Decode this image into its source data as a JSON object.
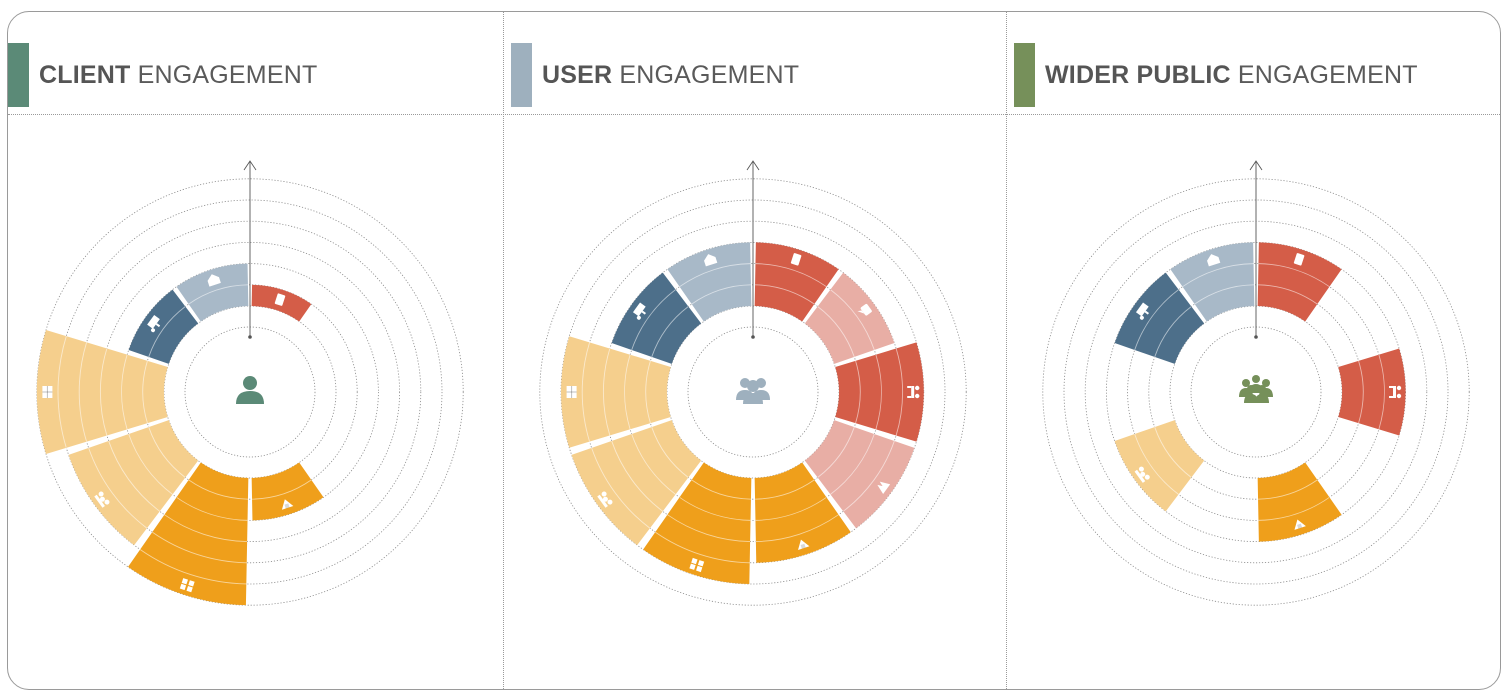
{
  "colors": {
    "client": "#5b8a77",
    "user": "#9eb0be",
    "public": "#76905a",
    "orange": "#ef9f1b",
    "light_orange": "#f5cf8d",
    "red": "#d45d48",
    "pink": "#e8aea5",
    "dark_blue": "#4d6f8a",
    "grey_blue": "#a8b9c8"
  },
  "panels": [
    {
      "title_bold": "CLIENT",
      "title_rest": " ENGAGEMENT",
      "accent_color": "#5b8a77",
      "center_icon": "person-icon"
    },
    {
      "title_bold": "USER",
      "title_rest": " ENGAGEMENT",
      "accent_color": "#9eb0be",
      "center_icon": "group-icon"
    },
    {
      "title_bold": "WIDER PUBLIC",
      "title_rest": " ENGAGEMENT",
      "accent_color": "#76905a",
      "center_icon": "crowd-icon"
    }
  ],
  "chart_data": [
    {
      "type": "radial-bar",
      "segments": [
        {
          "label": "",
          "icon": "document-icon",
          "color": "#d45d48",
          "level": 1
        },
        {
          "label": "",
          "icon": "feedback-icon",
          "color": "#e8aea5",
          "level": 0
        },
        {
          "label": "",
          "icon": "meeting-icon",
          "color": "#d45d48",
          "level": 0
        },
        {
          "label": "",
          "icon": "workshop-icon",
          "color": "#e8aea5",
          "level": 0
        },
        {
          "label": "",
          "icon": "tools-icon",
          "color": "#ef9f1b",
          "level": 2
        },
        {
          "label": "",
          "icon": "puzzle-icon",
          "color": "#ef9f1b",
          "level": 6
        },
        {
          "label": "",
          "icon": "collaboration-icon",
          "color": "#f5cf8d",
          "level": 5
        },
        {
          "label": "",
          "icon": "planning-icon",
          "color": "#f5cf8d",
          "level": 6
        },
        {
          "label": "",
          "icon": "presentation-icon",
          "color": "#4d6f8a",
          "level": 2
        },
        {
          "label": "",
          "icon": "building-icon",
          "color": "#a8b9c8",
          "level": 2
        }
      ]
    },
    {
      "type": "radial-bar",
      "segments": [
        {
          "label": "",
          "icon": "document-icon",
          "color": "#d45d48",
          "level": 3
        },
        {
          "label": "",
          "icon": "feedback-icon",
          "color": "#e8aea5",
          "level": 3
        },
        {
          "label": "",
          "icon": "meeting-icon",
          "color": "#d45d48",
          "level": 4
        },
        {
          "label": "",
          "icon": "workshop-icon",
          "color": "#e8aea5",
          "level": 4
        },
        {
          "label": "",
          "icon": "tools-icon",
          "color": "#ef9f1b",
          "level": 4
        },
        {
          "label": "",
          "icon": "puzzle-icon",
          "color": "#ef9f1b",
          "level": 5
        },
        {
          "label": "",
          "icon": "collaboration-icon",
          "color": "#f5cf8d",
          "level": 5
        },
        {
          "label": "",
          "icon": "planning-icon",
          "color": "#f5cf8d",
          "level": 5
        },
        {
          "label": "",
          "icon": "presentation-icon",
          "color": "#4d6f8a",
          "level": 3
        },
        {
          "label": "",
          "icon": "building-icon",
          "color": "#a8b9c8",
          "level": 3
        }
      ]
    },
    {
      "type": "radial-bar",
      "segments": [
        {
          "label": "",
          "icon": "document-icon",
          "color": "#d45d48",
          "level": 3
        },
        {
          "label": "",
          "icon": "feedback-icon",
          "color": "#e8aea5",
          "level": 0
        },
        {
          "label": "",
          "icon": "meeting-icon",
          "color": "#d45d48",
          "level": 3
        },
        {
          "label": "",
          "icon": "workshop-icon",
          "color": "#e8aea5",
          "level": 0
        },
        {
          "label": "",
          "icon": "tools-icon",
          "color": "#ef9f1b",
          "level": 3
        },
        {
          "label": "",
          "icon": "puzzle-icon",
          "color": "#ef9f1b",
          "level": 0
        },
        {
          "label": "",
          "icon": "collaboration-icon",
          "color": "#f5cf8d",
          "level": 3
        },
        {
          "label": "",
          "icon": "planning-icon",
          "color": "#f5cf8d",
          "level": 0
        },
        {
          "label": "",
          "icon": "presentation-icon",
          "color": "#4d6f8a",
          "level": 3
        },
        {
          "label": "",
          "icon": "building-icon",
          "color": "#a8b9c8",
          "level": 3
        }
      ]
    }
  ]
}
